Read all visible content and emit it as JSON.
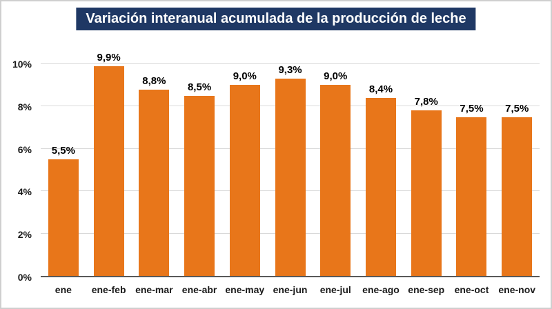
{
  "chart_data": {
    "type": "bar",
    "title": "Variación interanual acumulada de la producción de leche",
    "categories": [
      "ene",
      "ene-feb",
      "ene-mar",
      "ene-abr",
      "ene-may",
      "ene-jun",
      "ene-jul",
      "ene-ago",
      "ene-sep",
      "ene-oct",
      "ene-nov"
    ],
    "values": [
      5.5,
      9.9,
      8.8,
      8.5,
      9.0,
      9.3,
      9.0,
      8.4,
      7.8,
      7.5,
      7.5
    ],
    "value_labels": [
      "5,5%",
      "9,9%",
      "8,8%",
      "8,5%",
      "9,0%",
      "9,3%",
      "9,0%",
      "8,4%",
      "7,8%",
      "7,5%",
      "7,5%"
    ],
    "y_tick_values": [
      0,
      2,
      4,
      6,
      8,
      10
    ],
    "y_tick_labels": [
      "0%",
      "2%",
      "4%",
      "6%",
      "8%",
      "10%"
    ],
    "ylim": [
      0,
      11
    ],
    "grid": true,
    "legend": "none",
    "colors": {
      "bar": "#E8761A",
      "title_bg": "#1F3864",
      "title_text": "#FFFFFF",
      "gridline": "#D9D9D9",
      "axis_line": "#595959",
      "tick_text": "#1A1A1A"
    }
  }
}
